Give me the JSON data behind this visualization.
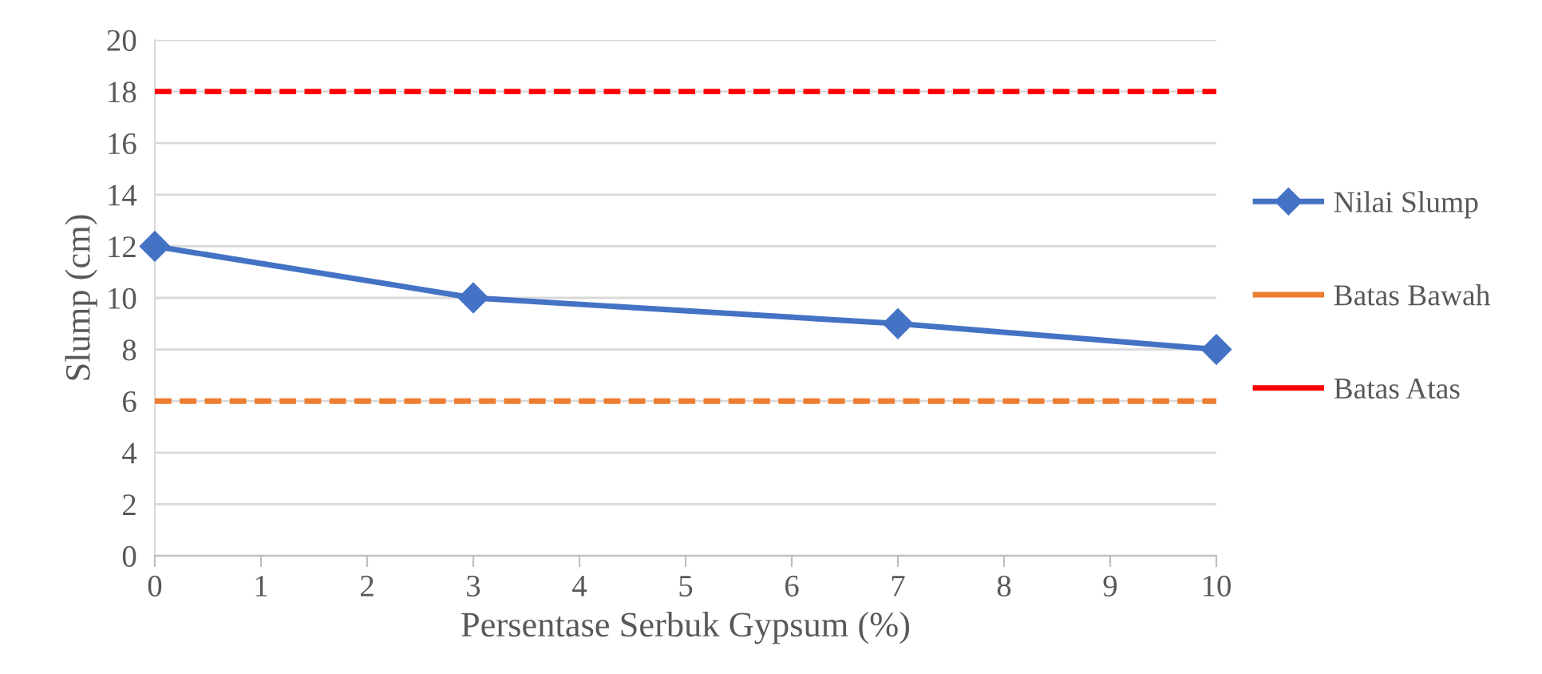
{
  "chart_data": {
    "type": "line",
    "xlabel": "Persentase Serbuk Gypsum (%)",
    "ylabel": "Slump (cm)",
    "xlim": [
      0,
      10
    ],
    "xticks": [
      0,
      1,
      2,
      3,
      4,
      5,
      6,
      7,
      8,
      9,
      10
    ],
    "ylim": [
      0,
      20
    ],
    "yticks": [
      0,
      2,
      4,
      6,
      8,
      10,
      12,
      14,
      16,
      18,
      20
    ],
    "grid": "y",
    "legend": "right",
    "series": [
      {
        "name": "Nilai Slump",
        "color": "#4472c4",
        "x": [
          0,
          3,
          7,
          10
        ],
        "values": [
          12,
          10,
          9,
          8
        ],
        "marker": "diamond",
        "line_style": "solid"
      },
      {
        "name": "Batas Bawah",
        "color": "#ed7d31",
        "x": [
          0,
          10
        ],
        "values": [
          6,
          6
        ],
        "marker": "none",
        "line_style": "dashed"
      },
      {
        "name": "Batas Atas",
        "color": "#ff0000",
        "x": [
          0,
          10
        ],
        "values": [
          18,
          18
        ],
        "marker": "none",
        "line_style": "dashed"
      }
    ]
  }
}
